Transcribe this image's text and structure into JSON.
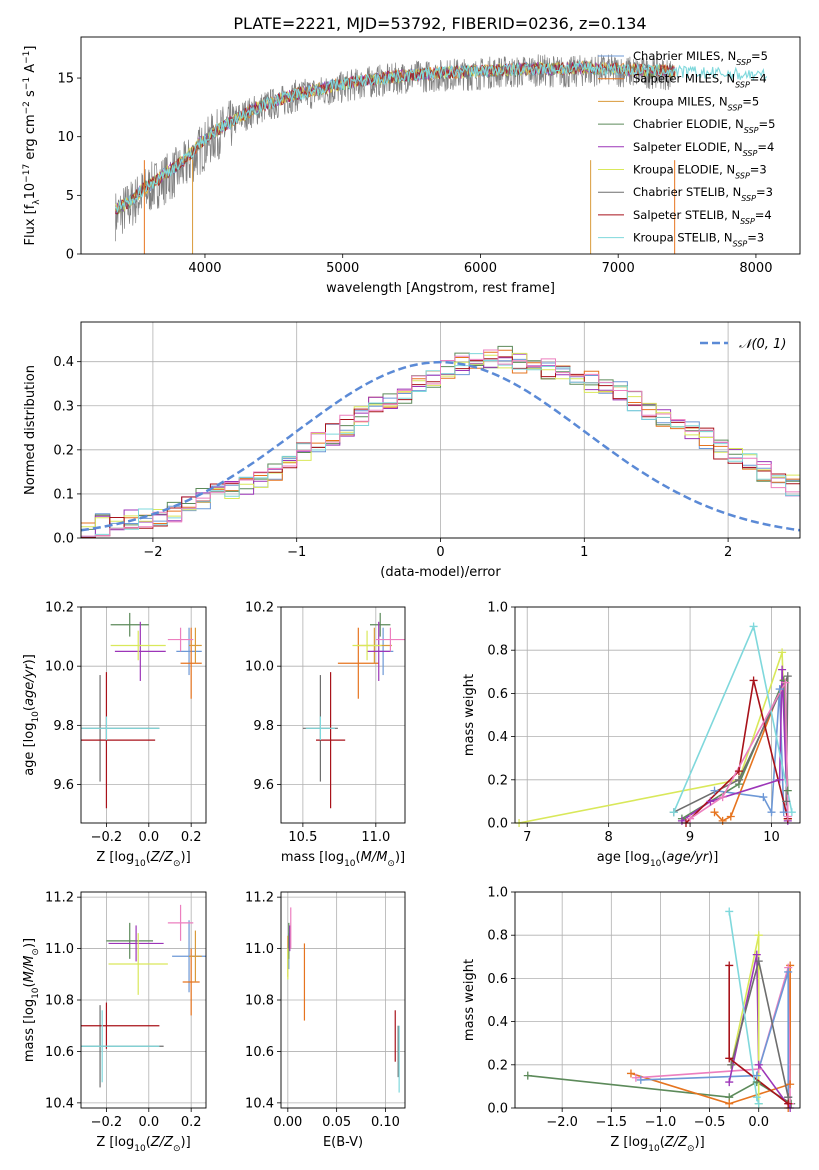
{
  "title": "PLATE=2221, MJD=53792, FIBERID=0236, z=0.134",
  "colors": {
    "Chabrier MILES": "#6d98d6",
    "Salpeter MILES": "#e6741f",
    "Kroupa MILES": "#d99a3a",
    "Chabrier ELODIE": "#5c8a5a",
    "Salpeter ELODIE": "#9c35b8",
    "Kroupa ELODIE": "#d9e85a",
    "Chabrier STELIB": "#6e6e6e",
    "Salpeter STELIB": "#a8121a",
    "Kroupa STELIB": "#7fd8dc",
    "pink": "#ec7fbf",
    "normal": "#5b8ad6"
  },
  "chart_data": [
    {
      "type": "line",
      "id": "spectrum",
      "xlabel": "wavelength [Angstrom, rest frame]",
      "ylabel": "Flux [f_λ 10^-17 erg cm^-2 s^-1 A^-1]",
      "xlim": [
        3100,
        8320
      ],
      "ylim": [
        0,
        18.5
      ],
      "xticks": [
        4000,
        5000,
        6000,
        7000,
        8000
      ],
      "yticks": [
        0,
        5,
        10,
        15
      ],
      "grid": false,
      "legend_position": "top-right",
      "data_trace": {
        "x": [
          3350,
          3450,
          3550,
          3650,
          3750,
          3850,
          3950,
          4050,
          4150,
          4250,
          4350,
          4450,
          4550,
          4650,
          4750,
          4850,
          4950,
          5050,
          5150,
          5250,
          5350,
          5450,
          5550,
          5650,
          5750,
          5850,
          5950,
          6050,
          6150,
          6250,
          6350,
          6450,
          6550,
          6650,
          6750,
          6850,
          6950,
          7050,
          7150,
          7250,
          7350
        ],
        "y": [
          3.5,
          4.3,
          5.4,
          6.2,
          6.9,
          7.6,
          8.9,
          10.1,
          10.9,
          11.8,
          12.3,
          12.8,
          13.1,
          13.6,
          13.8,
          14.0,
          14.2,
          14.5,
          14.7,
          14.9,
          15.0,
          15.2,
          15.3,
          15.3,
          15.4,
          15.5,
          15.4,
          15.6,
          15.7,
          15.6,
          15.8,
          15.8,
          15.7,
          15.6,
          15.8,
          15.8,
          15.8,
          15.7,
          15.6,
          15.6,
          15.5
        ]
      },
      "model_x": [
        3350,
        3450,
        3550,
        3650,
        3750,
        3850,
        3950,
        4050,
        4150,
        4250,
        4350,
        4450,
        4550,
        4650,
        4750,
        4850,
        4950,
        5050,
        5150,
        5250,
        5350,
        5450,
        5550,
        5650,
        5750,
        5850,
        5950,
        6050,
        6150,
        6250,
        6350,
        6450,
        6550,
        6650,
        6750,
        6850,
        6950,
        7050,
        7150,
        7250,
        7350,
        7450,
        7550,
        7650,
        7750,
        7850,
        7950,
        8050
      ],
      "model_y": [
        3.8,
        4.4,
        5.5,
        6.3,
        7.2,
        8.0,
        9.3,
        10.3,
        11.0,
        11.7,
        12.3,
        12.8,
        13.2,
        13.6,
        13.9,
        14.1,
        14.4,
        14.6,
        14.8,
        14.9,
        15.1,
        15.2,
        15.3,
        15.4,
        15.5,
        15.5,
        15.6,
        15.6,
        15.7,
        15.7,
        15.8,
        15.8,
        15.8,
        15.8,
        15.9,
        15.8,
        15.8,
        15.7,
        15.7,
        15.6,
        15.6,
        15.5,
        15.5,
        15.4,
        15.4,
        15.3,
        15.3,
        15.2
      ],
      "series": [
        {
          "name": "Chabrier MILES, N_SSP=5",
          "label": "Chabrier MILES, N",
          "sub": "SSP",
          "suffix": "=5"
        },
        {
          "name": "Salpeter MILES, N_SSP=4",
          "label": "Salpeter MILES, N",
          "sub": "SSP",
          "suffix": "=4"
        },
        {
          "name": "Kroupa MILES, N_SSP=5",
          "label": "Kroupa MILES, N",
          "sub": "SSP",
          "suffix": "=5"
        },
        {
          "name": "Chabrier ELODIE, N_SSP=5",
          "label": "Chabrier ELODIE, N",
          "sub": "SSP",
          "suffix": "=5"
        },
        {
          "name": "Salpeter ELODIE, N_SSP=4",
          "label": "Salpeter ELODIE, N",
          "sub": "SSP",
          "suffix": "=4"
        },
        {
          "name": "Kroupa ELODIE, N_SSP=3",
          "label": "Kroupa ELODIE, N",
          "sub": "SSP",
          "suffix": "=3"
        },
        {
          "name": "Chabrier STELIB, N_SSP=3",
          "label": "Chabrier STELIB, N",
          "sub": "SSP",
          "suffix": "=3"
        },
        {
          "name": "Salpeter STELIB, N_SSP=4",
          "label": "Salpeter STELIB, N",
          "sub": "SSP",
          "suffix": "=4"
        },
        {
          "name": "Kroupa STELIB, N_SSP=3",
          "label": "Kroupa STELIB, N",
          "sub": "SSP",
          "suffix": "=3"
        }
      ]
    },
    {
      "type": "line",
      "id": "residuals",
      "xlabel": "(data-model)/error",
      "ylabel": "Normed distribution",
      "xlim": [
        -2.5,
        2.5
      ],
      "ylim": [
        0,
        0.49
      ],
      "xticks": [
        -2,
        -1,
        0,
        1,
        2
      ],
      "yticks": [
        0.0,
        0.1,
        0.2,
        0.3,
        0.4
      ],
      "grid": true,
      "legend_position": "top-right",
      "normal_label": "𝒩(0, 1)",
      "bin_width": 0.1,
      "bins_start": -2.5,
      "histogram_mean": [
        0.025,
        0.03,
        0.03,
        0.04,
        0.045,
        0.05,
        0.06,
        0.075,
        0.09,
        0.1,
        0.11,
        0.12,
        0.135,
        0.155,
        0.175,
        0.2,
        0.22,
        0.235,
        0.255,
        0.275,
        0.295,
        0.31,
        0.33,
        0.35,
        0.365,
        0.38,
        0.395,
        0.405,
        0.41,
        0.41,
        0.395,
        0.39,
        0.385,
        0.38,
        0.37,
        0.355,
        0.34,
        0.33,
        0.31,
        0.29,
        0.275,
        0.26,
        0.24,
        0.225,
        0.2,
        0.185,
        0.17,
        0.15,
        0.135,
        0.12,
        0.1
      ]
    },
    {
      "type": "scatter",
      "id": "age-vs-Z",
      "xlabel": "Z [log10(Z/Z☉)]",
      "ylabel": "age [log10(age/yr)]",
      "xlim": [
        -0.32,
        0.27
      ],
      "ylim": [
        9.47,
        10.2
      ],
      "xticks": [
        -0.2,
        0.0,
        0.2
      ],
      "yticks": [
        9.6,
        9.8,
        10.0,
        10.2
      ],
      "grid": true,
      "points": [
        {
          "series": "Chabrier MILES",
          "x": 0.19,
          "y": 10.05,
          "xerr": 0.06,
          "yerr": 0.08
        },
        {
          "series": "Salpeter MILES",
          "x": 0.2,
          "y": 10.01,
          "xerr": 0.05,
          "yerr": 0.12
        },
        {
          "series": "Kroupa MILES",
          "x": 0.22,
          "y": 10.07,
          "xerr": 0.03,
          "yerr": 0.06
        },
        {
          "series": "Chabrier ELODIE",
          "x": -0.09,
          "y": 10.14,
          "xerr": 0.09,
          "yerr": 0.04
        },
        {
          "series": "Salpeter ELODIE",
          "x": -0.04,
          "y": 10.05,
          "xerr": 0.12,
          "yerr": 0.1
        },
        {
          "series": "Kroupa ELODIE",
          "x": -0.05,
          "y": 10.07,
          "xerr": 0.13,
          "yerr": 0.05
        },
        {
          "series": "Chabrier STELIB",
          "x": -0.23,
          "y": 9.79,
          "xerr": 0.28,
          "yerr": 0.18
        },
        {
          "series": "Salpeter STELIB",
          "x": -0.2,
          "y": 9.75,
          "xerr": 0.23,
          "yerr": 0.23
        },
        {
          "series": "Kroupa STELIB",
          "x": -0.2,
          "y": 9.79,
          "xerr": 0.25,
          "yerr": 0.04
        },
        {
          "series": "pink",
          "x": 0.15,
          "y": 10.09,
          "xerr": 0.06,
          "yerr": 0.04
        }
      ]
    },
    {
      "type": "scatter",
      "id": "age-vs-mass",
      "xlabel": "mass [log10(M/M☉)]",
      "ylabel": "",
      "xlim": [
        10.35,
        11.2
      ],
      "ylim": [
        9.47,
        10.2
      ],
      "xticks": [
        10.5,
        11.0
      ],
      "yticks": [
        9.6,
        9.8,
        10.0,
        10.2
      ],
      "grid": true,
      "points": [
        {
          "series": "Chabrier MILES",
          "x": 11.05,
          "y": 10.05,
          "xerr": 0.07,
          "yerr": 0.08
        },
        {
          "series": "Salpeter MILES",
          "x": 10.88,
          "y": 10.01,
          "xerr": 0.14,
          "yerr": 0.12
        },
        {
          "series": "Kroupa MILES",
          "x": 10.99,
          "y": 10.07,
          "xerr": 0.12,
          "yerr": 0.06
        },
        {
          "series": "Chabrier ELODIE",
          "x": 11.03,
          "y": 10.14,
          "xerr": 0.07,
          "yerr": 0.04
        },
        {
          "series": "Salpeter ELODIE",
          "x": 11.02,
          "y": 10.05,
          "xerr": 0.08,
          "yerr": 0.1
        },
        {
          "series": "Kroupa ELODIE",
          "x": 10.94,
          "y": 10.07,
          "xerr": 0.1,
          "yerr": 0.05
        },
        {
          "series": "Chabrier STELIB",
          "x": 10.62,
          "y": 9.79,
          "xerr": 0.12,
          "yerr": 0.18
        },
        {
          "series": "Salpeter STELIB",
          "x": 10.69,
          "y": 9.75,
          "xerr": 0.1,
          "yerr": 0.23
        },
        {
          "series": "Kroupa STELIB",
          "x": 10.62,
          "y": 9.79,
          "xerr": 0.1,
          "yerr": 0.04
        },
        {
          "series": "pink",
          "x": 11.1,
          "y": 10.09,
          "xerr": 0.1,
          "yerr": 0.04
        }
      ]
    },
    {
      "type": "line",
      "id": "mass-weight-vs-age",
      "xlabel": "age [log10(age/yr)]",
      "ylabel": "mass weight",
      "xlim": [
        6.85,
        10.35
      ],
      "ylim": [
        0,
        1.0
      ],
      "xticks": [
        7,
        8,
        9,
        10
      ],
      "yticks": [
        0.0,
        0.2,
        0.4,
        0.6,
        0.8,
        1.0
      ],
      "grid": true,
      "series": [
        {
          "series": "Kroupa ELODIE",
          "x": [
            6.9,
            9.6,
            10.13,
            10.2
          ],
          "y": [
            0.0,
            0.2,
            0.79,
            0.02
          ]
        },
        {
          "series": "Chabrier MILES",
          "x": [
            9.3,
            9.9,
            10.0,
            10.1,
            10.15
          ],
          "y": [
            0.15,
            0.12,
            0.05,
            0.62,
            0.05
          ]
        },
        {
          "series": "Salpeter MILES",
          "x": [
            9.3,
            9.4,
            9.5,
            10.15,
            10.2
          ],
          "y": [
            0.05,
            0.01,
            0.03,
            0.66,
            0.02
          ]
        },
        {
          "series": "Chabrier ELODIE",
          "x": [
            8.9,
            9.6,
            10.15,
            10.2
          ],
          "y": [
            0.02,
            0.18,
            0.66,
            0.15
          ]
        },
        {
          "series": "Salpeter ELODIE",
          "x": [
            8.9,
            9.25,
            10.1,
            10.13,
            10.2
          ],
          "y": [
            0.01,
            0.1,
            0.2,
            0.71,
            0.01
          ]
        },
        {
          "series": "Chabrier STELIB",
          "x": [
            8.8,
            9.6,
            10.2,
            10.18
          ],
          "y": [
            0.05,
            0.2,
            0.68,
            0.1
          ]
        },
        {
          "series": "Salpeter STELIB",
          "x": [
            8.95,
            9.6,
            9.78,
            10.2
          ],
          "y": [
            0.0,
            0.24,
            0.66,
            0.02
          ]
        },
        {
          "series": "Kroupa STELIB",
          "x": [
            8.8,
            9.78,
            10.25
          ],
          "y": [
            0.05,
            0.91,
            0.05
          ]
        },
        {
          "series": "pink",
          "x": [
            9.0,
            9.4,
            10.17,
            10.2
          ],
          "y": [
            0.02,
            0.12,
            0.65,
            0.03
          ]
        }
      ]
    },
    {
      "type": "scatter",
      "id": "mass-vs-Z",
      "xlabel": "Z [log10(Z/Z☉)]",
      "ylabel": "mass [log10(M/M☉)]",
      "xlim": [
        -0.32,
        0.27
      ],
      "ylim": [
        10.38,
        11.22
      ],
      "xticks": [
        -0.2,
        0.0,
        0.2
      ],
      "yticks": [
        10.4,
        10.6,
        10.8,
        11.0,
        11.2
      ],
      "grid": true,
      "points": [
        {
          "series": "Chabrier MILES",
          "x": 0.19,
          "y": 10.97,
          "xerr": 0.08,
          "yerr": 0.14
        },
        {
          "series": "Salpeter MILES",
          "x": 0.2,
          "y": 10.87,
          "xerr": 0.04,
          "yerr": 0.13
        },
        {
          "series": "Kroupa MILES",
          "x": 0.22,
          "y": 10.97,
          "xerr": 0.03,
          "yerr": 0.1
        },
        {
          "series": "Chabrier ELODIE",
          "x": -0.09,
          "y": 11.03,
          "xerr": 0.11,
          "yerr": 0.07
        },
        {
          "series": "Salpeter ELODIE",
          "x": -0.06,
          "y": 11.02,
          "xerr": 0.13,
          "yerr": 0.07
        },
        {
          "series": "Kroupa ELODIE",
          "x": -0.05,
          "y": 10.94,
          "xerr": 0.14,
          "yerr": 0.12
        },
        {
          "series": "Chabrier STELIB",
          "x": -0.23,
          "y": 10.62,
          "xerr": 0.3,
          "yerr": 0.16
        },
        {
          "series": "Salpeter STELIB",
          "x": -0.2,
          "y": 10.7,
          "xerr": 0.25,
          "yerr": 0.09
        },
        {
          "series": "Kroupa STELIB",
          "x": -0.22,
          "y": 10.62,
          "xerr": 0.27,
          "yerr": 0.14
        },
        {
          "series": "pink",
          "x": 0.15,
          "y": 11.1,
          "xerr": 0.06,
          "yerr": 0.07
        }
      ]
    },
    {
      "type": "scatter",
      "id": "mass-vs-EBV",
      "xlabel": "E(B-V)",
      "ylabel": "",
      "xlim": [
        -0.007,
        0.12
      ],
      "ylim": [
        10.38,
        11.22
      ],
      "xticks": [
        0.0,
        0.05,
        0.1
      ],
      "xticklabels": [
        "0.00",
        "0.05",
        "0.10"
      ],
      "yticks": [
        10.4,
        10.6,
        10.8,
        11.0,
        11.2
      ],
      "grid": true,
      "points": [
        {
          "series": "Chabrier MILES",
          "x": 0.001,
          "y": 10.99,
          "xerr": 0,
          "yerr": 0.07
        },
        {
          "series": "Salpeter MILES",
          "x": 0.017,
          "y": 10.87,
          "xerr": 0,
          "yerr": 0.15
        },
        {
          "series": "Kroupa MILES",
          "x": 0.0,
          "y": 10.97,
          "xerr": 0,
          "yerr": 0.08
        },
        {
          "series": "Chabrier ELODIE",
          "x": 0.001,
          "y": 11.03,
          "xerr": 0,
          "yerr": 0.07
        },
        {
          "series": "Salpeter ELODIE",
          "x": 0.002,
          "y": 11.04,
          "xerr": 0,
          "yerr": 0.05
        },
        {
          "series": "Kroupa ELODIE",
          "x": 0.0,
          "y": 10.94,
          "xerr": 0,
          "yerr": 0.06
        },
        {
          "series": "Chabrier STELIB",
          "x": 0.113,
          "y": 10.6,
          "xerr": 0,
          "yerr": 0.1
        },
        {
          "series": "Salpeter STELIB",
          "x": 0.11,
          "y": 10.66,
          "xerr": 0,
          "yerr": 0.1
        },
        {
          "series": "Kroupa STELIB",
          "x": 0.114,
          "y": 10.57,
          "xerr": 0,
          "yerr": 0.13
        },
        {
          "series": "pink",
          "x": 0.003,
          "y": 11.08,
          "xerr": 0,
          "yerr": 0.08
        }
      ]
    },
    {
      "type": "line",
      "id": "mass-weight-vs-Z",
      "xlabel": "Z [log10(Z/Z☉)]",
      "ylabel": "mass weight",
      "xlim": [
        -2.48,
        0.42
      ],
      "ylim": [
        0,
        1.0
      ],
      "xticks": [
        -2.0,
        -1.5,
        -1.0,
        -0.5,
        0.0
      ],
      "xticklabels": [
        "−2.0",
        "−1.5",
        "−1.0",
        "−0.5",
        "0.0"
      ],
      "yticks": [
        0.0,
        0.2,
        0.4,
        0.6,
        0.8,
        1.0
      ],
      "grid": true,
      "series": [
        {
          "series": "Chabrier ELODIE",
          "x": [
            -2.35,
            -0.3,
            -0.02,
            0.33
          ],
          "y": [
            0.15,
            0.05,
            0.12,
            0.02
          ]
        },
        {
          "series": "Salpeter MILES",
          "x": [
            -1.3,
            -0.3,
            0.32,
            0.32,
            0.3
          ],
          "y": [
            0.16,
            0.02,
            0.11,
            0.66,
            0.0
          ]
        },
        {
          "series": "pink",
          "x": [
            -1.25,
            0.0,
            0.3,
            0.32
          ],
          "y": [
            0.14,
            0.18,
            0.65,
            0.02
          ]
        },
        {
          "series": "Chabrier MILES",
          "x": [
            -1.2,
            -0.02,
            0.3,
            0.3
          ],
          "y": [
            0.13,
            0.15,
            0.63,
            0.05
          ]
        },
        {
          "series": "Salpeter ELODIE",
          "x": [
            -0.3,
            -0.02,
            0.0,
            0.32
          ],
          "y": [
            0.12,
            0.71,
            0.2,
            0.0
          ]
        },
        {
          "series": "Kroupa ELODIE",
          "x": [
            -0.28,
            0.0,
            0.0
          ],
          "y": [
            0.2,
            0.8,
            0.02
          ]
        },
        {
          "series": "Chabrier STELIB",
          "x": [
            -0.28,
            0.0,
            0.3
          ],
          "y": [
            0.2,
            0.68,
            0.05
          ]
        },
        {
          "series": "Salpeter STELIB",
          "x": [
            -0.3,
            -0.3,
            0.3
          ],
          "y": [
            0.66,
            0.23,
            0.02
          ]
        },
        {
          "series": "Kroupa STELIB",
          "x": [
            -0.3,
            -0.02,
            0.0
          ],
          "y": [
            0.91,
            0.05,
            0.02
          ]
        }
      ]
    }
  ]
}
